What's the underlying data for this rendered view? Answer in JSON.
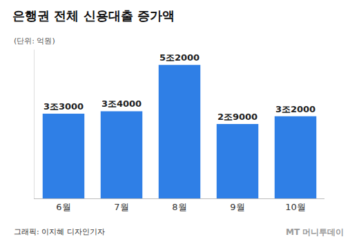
{
  "chart_data": {
    "type": "bar",
    "title": "은행권 전체 신용대출 증가액",
    "subtitle": "(단위: 억원)",
    "categories": [
      "6월",
      "7월",
      "8월",
      "9월",
      "10월"
    ],
    "values": [
      33000,
      34000,
      52000,
      29000,
      32000
    ],
    "value_labels": [
      "3조3000",
      "3조4000",
      "5조2000",
      "2조9000",
      "3조2000"
    ],
    "color": "#2f7fe6",
    "ylim": [
      0,
      58000
    ],
    "grid": false,
    "data_labels": true,
    "tick_labels": "x",
    "annotations": [
      "그래픽: 이지혜 디자인기자",
      "MT 머니투데이"
    ]
  }
}
